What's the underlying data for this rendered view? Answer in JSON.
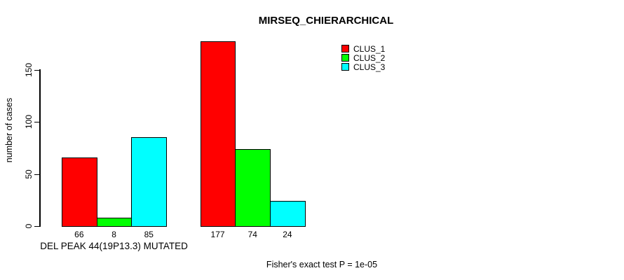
{
  "colors": {
    "background": "#ffffff",
    "axis": "#000000",
    "text": "#000000"
  },
  "legend": {
    "items": [
      {
        "label": "CLUS_1",
        "color": "#ff0000"
      },
      {
        "label": "CLUS_2",
        "color": "#00ff00"
      },
      {
        "label": "CLUS_3",
        "color": "#00ffff"
      }
    ]
  },
  "chart_data": {
    "type": "bar",
    "title": "MIRSEQ_CHIERARCHICAL",
    "xlabel": "",
    "ylabel": "number of cases",
    "yticks": [
      0,
      50,
      100,
      150
    ],
    "ylim": [
      0,
      185
    ],
    "grid": false,
    "legend_position": "top-right",
    "series_names": [
      "CLUS_1",
      "CLUS_2",
      "CLUS_3"
    ],
    "series_colors": [
      "#ff0000",
      "#00ff00",
      "#00ffff"
    ],
    "groups": [
      {
        "label": "DEL PEAK 44(19P13.3) MUTATED",
        "values": [
          66,
          8,
          85
        ]
      },
      {
        "label": "",
        "values": [
          177,
          74,
          24
        ]
      }
    ],
    "annotation": "Fisher's exact test P = 1e-05"
  }
}
